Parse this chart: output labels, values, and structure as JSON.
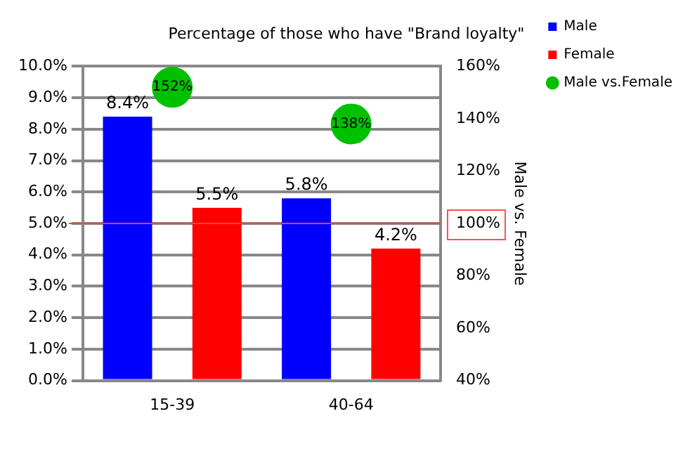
{
  "chart_data": {
    "type": "bar",
    "title": "Percentage of those who have \"Brand loyalty\"",
    "y2label": "Male vs. Female",
    "categories": [
      "15-39",
      "40-64"
    ],
    "series": [
      {
        "name": "Male",
        "color": "#0000ff",
        "values": [
          8.4,
          5.8
        ],
        "value_labels": [
          "8.4%",
          "5.8%"
        ]
      },
      {
        "name": "Female",
        "color": "#ff0000",
        "values": [
          5.5,
          4.2
        ],
        "value_labels": [
          "5.5%",
          "4.2%"
        ]
      },
      {
        "name": "Male vs.Female",
        "type": "scatter",
        "axis": "y2",
        "x": [
          "15-39",
          "40-64"
        ],
        "color": "#00c000",
        "values": [
          152,
          138
        ],
        "value_labels": [
          "152%",
          "138%"
        ]
      }
    ],
    "ylim": [
      0,
      10
    ],
    "yticks": [
      {
        "value": 0,
        "label": "0.0%"
      },
      {
        "value": 1,
        "label": "1.0%"
      },
      {
        "value": 2,
        "label": "2.0%"
      },
      {
        "value": 3,
        "label": "3.0%"
      },
      {
        "value": 4,
        "label": "4.0%"
      },
      {
        "value": 5,
        "label": "5.0%"
      },
      {
        "value": 6,
        "label": "6.0%"
      },
      {
        "value": 7,
        "label": "7.0%"
      },
      {
        "value": 8,
        "label": "8.0%"
      },
      {
        "value": 9,
        "label": "9.0%"
      },
      {
        "value": 10,
        "label": "10.0%"
      }
    ],
    "y2lim": [
      40,
      160
    ],
    "y2ticks": [
      {
        "value": 40,
        "label": "40%"
      },
      {
        "value": 60,
        "label": "60%"
      },
      {
        "value": 80,
        "label": "80%"
      },
      {
        "value": 100,
        "label": "100%"
      },
      {
        "value": 120,
        "label": "120%"
      },
      {
        "value": 140,
        "label": "140%"
      },
      {
        "value": 160,
        "label": "160%"
      }
    ],
    "ref_lines": [
      {
        "axis": "y2",
        "value": 100,
        "color": "#ff4040"
      }
    ],
    "grid": "y",
    "legend": "top right",
    "marker": "circle"
  }
}
